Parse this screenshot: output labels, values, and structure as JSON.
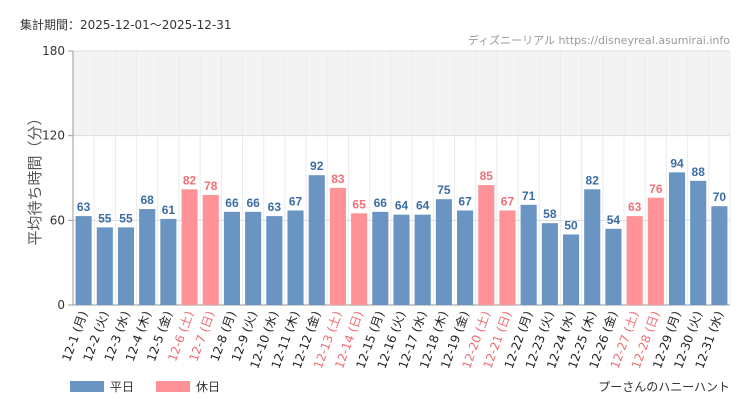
{
  "header": {
    "period": "集計期間：2025-12-01～2025-12-31",
    "source": "ディズニーリアル https://disneyreal.asumirai.info"
  },
  "footer": {
    "attraction": "プーさんのハニーハント"
  },
  "colors": {
    "weekday": "#6a95c3",
    "holiday": "#ff9297",
    "weekday_label": "#3a6da3",
    "holiday_label": "#f07078",
    "weekday_tick": "#222222",
    "holiday_tick": "#ee6c74",
    "band": "#f3f3f3",
    "grid": "#dddddd"
  },
  "chart_data": {
    "type": "bar",
    "ylabel": "平均待ち時間（分）",
    "ylim": [
      0,
      180
    ],
    "yticks": [
      0,
      60,
      120,
      180
    ],
    "band": [
      120,
      180
    ],
    "categories": [
      "12-1 (月)",
      "12-2 (火)",
      "12-3 (水)",
      "12-4 (木)",
      "12-5 (金)",
      "12-6 (土)",
      "12-7 (日)",
      "12-8 (月)",
      "12-9 (火)",
      "12-10 (水)",
      "12-11 (木)",
      "12-12 (金)",
      "12-13 (土)",
      "12-14 (日)",
      "12-15 (月)",
      "12-16 (火)",
      "12-17 (水)",
      "12-18 (木)",
      "12-19 (金)",
      "12-20 (土)",
      "12-21 (日)",
      "12-22 (月)",
      "12-23 (火)",
      "12-24 (水)",
      "12-25 (木)",
      "12-26 (金)",
      "12-27 (土)",
      "12-28 (日)",
      "12-29 (月)",
      "12-30 (火)",
      "12-31 (水)"
    ],
    "values": [
      63,
      55,
      55,
      68,
      61,
      82,
      78,
      66,
      66,
      63,
      67,
      92,
      83,
      65,
      66,
      64,
      64,
      75,
      67,
      85,
      67,
      71,
      58,
      50,
      82,
      54,
      63,
      76,
      94,
      88,
      70
    ],
    "holiday": [
      false,
      false,
      false,
      false,
      false,
      true,
      true,
      false,
      false,
      false,
      false,
      false,
      true,
      true,
      false,
      false,
      false,
      false,
      false,
      true,
      true,
      false,
      false,
      false,
      false,
      false,
      true,
      true,
      false,
      false,
      false
    ],
    "legend": [
      {
        "name": "平日",
        "color": "#6a95c3"
      },
      {
        "name": "休日",
        "color": "#ff9297"
      }
    ]
  }
}
